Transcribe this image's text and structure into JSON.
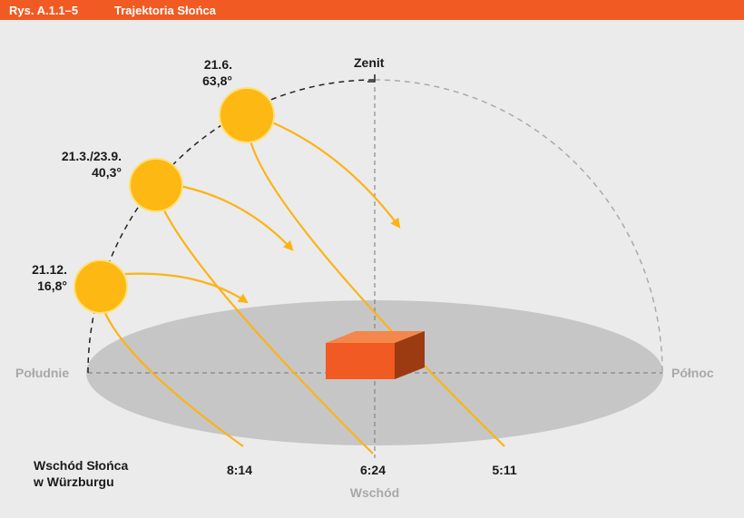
{
  "header": {
    "figure": "Rys. A.1.1–5",
    "title": "Trajektoria Słońca"
  },
  "zenith": "Zenit",
  "suns": [
    {
      "date": "21.6.",
      "angle": "63,8°"
    },
    {
      "date": "21.3./23.9.",
      "angle": "40,3°"
    },
    {
      "date": "21.12.",
      "angle": "16,8°"
    }
  ],
  "directions": {
    "south": "Południe",
    "north": "Północ",
    "east": "Wschód"
  },
  "sunrise": {
    "label": [
      "Wschód Słońca",
      "w Würzburgu"
    ],
    "times": [
      "8:14",
      "6:24",
      "5:11"
    ]
  }
}
